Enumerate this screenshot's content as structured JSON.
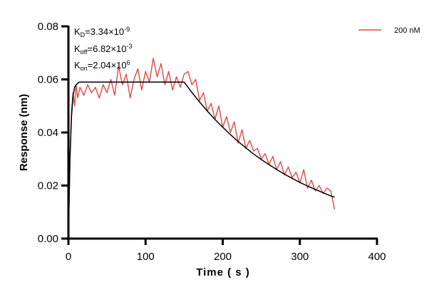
{
  "chart_data": {
    "type": "line",
    "title": "",
    "xlabel": "Time ( s )",
    "ylabel": "Response (nm)",
    "xlim": [
      0,
      400
    ],
    "ylim": [
      0,
      0.08
    ],
    "x_ticks": [
      "0",
      "100",
      "200",
      "300",
      "400"
    ],
    "y_ticks": [
      "0.00",
      "0.02",
      "0.04",
      "0.06",
      "0.08"
    ],
    "grid": false,
    "legend_position": "top-right",
    "annotations": {
      "kd": {
        "label": "K",
        "sub": "D",
        "value": "=3.34×10",
        "exp": "-9"
      },
      "koff": {
        "label": "K",
        "sub": "off",
        "value": "=6.82×10",
        "exp": "-3"
      },
      "kon": {
        "label": "K",
        "sub": "on",
        "value": "=2.04×10",
        "exp": "6"
      }
    },
    "series": [
      {
        "name": "200 nM",
        "color": "#e04848",
        "x": [
          0,
          2,
          4,
          6,
          8,
          10,
          12,
          15,
          20,
          25,
          30,
          35,
          40,
          45,
          50,
          55,
          60,
          65,
          70,
          75,
          80,
          85,
          90,
          95,
          100,
          105,
          110,
          115,
          120,
          125,
          130,
          135,
          140,
          145,
          150,
          155,
          160,
          165,
          170,
          175,
          180,
          185,
          190,
          195,
          200,
          205,
          210,
          215,
          220,
          225,
          230,
          235,
          240,
          245,
          250,
          255,
          260,
          265,
          270,
          275,
          280,
          285,
          290,
          295,
          300,
          305,
          310,
          315,
          320,
          325,
          330,
          335,
          340,
          345
        ],
        "y": [
          0.0,
          0.03,
          0.048,
          0.055,
          0.05,
          0.058,
          0.053,
          0.057,
          0.054,
          0.058,
          0.055,
          0.057,
          0.053,
          0.058,
          0.055,
          0.06,
          0.054,
          0.065,
          0.058,
          0.062,
          0.053,
          0.06,
          0.064,
          0.056,
          0.063,
          0.059,
          0.068,
          0.061,
          0.066,
          0.058,
          0.063,
          0.056,
          0.061,
          0.057,
          0.062,
          0.063,
          0.058,
          0.06,
          0.052,
          0.055,
          0.048,
          0.051,
          0.045,
          0.05,
          0.042,
          0.046,
          0.04,
          0.044,
          0.036,
          0.041,
          0.034,
          0.037,
          0.033,
          0.034,
          0.03,
          0.032,
          0.028,
          0.031,
          0.026,
          0.029,
          0.024,
          0.027,
          0.023,
          0.025,
          0.021,
          0.026,
          0.019,
          0.022,
          0.018,
          0.02,
          0.017,
          0.019,
          0.018,
          0.011
        ]
      },
      {
        "color": "#000000",
        "x": [
          0,
          2,
          4,
          6,
          8,
          10,
          14,
          150,
          160,
          170,
          180,
          190,
          200,
          210,
          220,
          230,
          240,
          250,
          260,
          270,
          280,
          290,
          300,
          310,
          320,
          330,
          340,
          345
        ],
        "y": [
          0,
          0.03,
          0.046,
          0.054,
          0.057,
          0.058,
          0.059,
          0.059,
          0.0551,
          0.0515,
          0.0481,
          0.0449,
          0.042,
          0.0392,
          0.0366,
          0.0342,
          0.0319,
          0.0298,
          0.0279,
          0.026,
          0.0243,
          0.0227,
          0.0212,
          0.0198,
          0.0185,
          0.0173,
          0.0161,
          0.0156
        ]
      }
    ]
  }
}
